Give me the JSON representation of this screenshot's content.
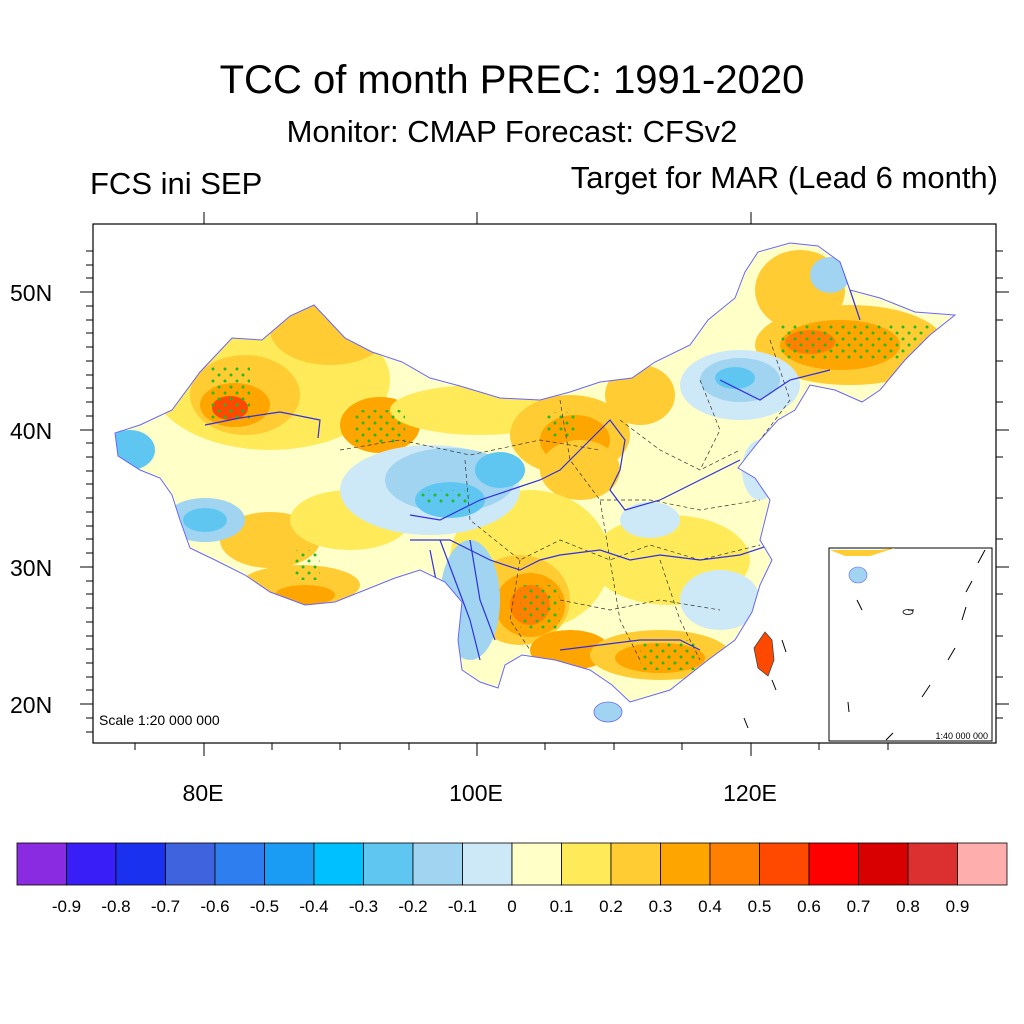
{
  "title": "TCC of month PREC: 1991-2020",
  "subtitle": "Monitor: CMAP   Forecast: CFSv2",
  "left_label": "FCS ini SEP",
  "right_label": "Target for MAR (Lead 6 month)",
  "scale_label": "Scale 1:20 000 000",
  "inset_scale_label": "1:40 000 000",
  "lat_labels": [
    "50N",
    "40N",
    "30N",
    "20N"
  ],
  "lon_labels": [
    "80E",
    "100E",
    "120E"
  ],
  "colorbar": {
    "colors": [
      "#8a2be2",
      "#3a1ef8",
      "#1a32f0",
      "#3f63de",
      "#2f7ef0",
      "#1a9cf5",
      "#00c0ff",
      "#5fc6f2",
      "#a0d4f0",
      "#cde9f8",
      "#ffffc8",
      "#ffeb5a",
      "#ffcc33",
      "#ffa500",
      "#ff8000",
      "#ff4800",
      "#ff0000",
      "#d80000",
      "#dc3030",
      "#ffaeae"
    ],
    "labels": [
      "-0.9",
      "-0.8",
      "-0.7",
      "-0.6",
      "-0.5",
      "-0.4",
      "-0.3",
      "-0.2",
      "-0.1",
      "0",
      "0.1",
      "0.2",
      "0.3",
      "0.4",
      "0.5",
      "0.6",
      "0.7",
      "0.8",
      "0.9"
    ]
  },
  "colors": {
    "rivers": "#3030e0",
    "stipple": "#22bb22",
    "boundary": "#333333"
  }
}
